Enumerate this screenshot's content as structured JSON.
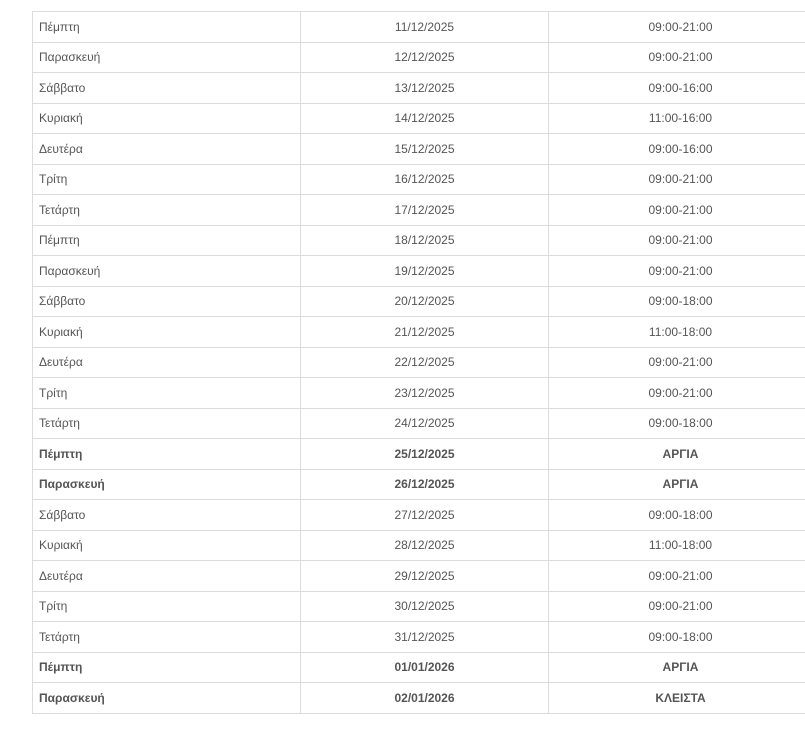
{
  "rows": [
    {
      "day": "Πέμπτη",
      "date": "11/12/2025",
      "hours": "09:00-21:00",
      "bold": false
    },
    {
      "day": "Παρασκευή",
      "date": "12/12/2025",
      "hours": "09:00-21:00",
      "bold": false
    },
    {
      "day": "Σάββατο",
      "date": "13/12/2025",
      "hours": "09:00-16:00",
      "bold": false
    },
    {
      "day": "Κυριακή",
      "date": "14/12/2025",
      "hours": "11:00-16:00",
      "bold": false
    },
    {
      "day": "Δευτέρα",
      "date": "15/12/2025",
      "hours": "09:00-16:00",
      "bold": false
    },
    {
      "day": "Τρίτη",
      "date": "16/12/2025",
      "hours": "09:00-21:00",
      "bold": false
    },
    {
      "day": "Τετάρτη",
      "date": "17/12/2025",
      "hours": "09:00-21:00",
      "bold": false
    },
    {
      "day": "Πέμπτη",
      "date": "18/12/2025",
      "hours": "09:00-21:00",
      "bold": false
    },
    {
      "day": "Παρασκευή",
      "date": "19/12/2025",
      "hours": "09:00-21:00",
      "bold": false
    },
    {
      "day": "Σάββατο",
      "date": "20/12/2025",
      "hours": "09:00-18:00",
      "bold": false
    },
    {
      "day": "Κυριακή",
      "date": "21/12/2025",
      "hours": "11:00-18:00",
      "bold": false
    },
    {
      "day": "Δευτέρα",
      "date": "22/12/2025",
      "hours": "09:00-21:00",
      "bold": false
    },
    {
      "day": "Τρίτη",
      "date": "23/12/2025",
      "hours": "09:00-21:00",
      "bold": false
    },
    {
      "day": "Τετάρτη",
      "date": "24/12/2025",
      "hours": "09:00-18:00",
      "bold": false
    },
    {
      "day": "Πέμπτη",
      "date": "25/12/2025",
      "hours": "ΑΡΓΙΑ",
      "bold": true
    },
    {
      "day": "Παρασκευή",
      "date": "26/12/2025",
      "hours": "ΑΡΓΙΑ",
      "bold": true
    },
    {
      "day": "Σάββατο",
      "date": "27/12/2025",
      "hours": "09:00-18:00",
      "bold": false
    },
    {
      "day": "Κυριακή",
      "date": "28/12/2025",
      "hours": "11:00-18:00",
      "bold": false
    },
    {
      "day": "Δευτέρα",
      "date": "29/12/2025",
      "hours": "09:00-21:00",
      "bold": false
    },
    {
      "day": "Τρίτη",
      "date": "30/12/2025",
      "hours": "09:00-21:00",
      "bold": false
    },
    {
      "day": "Τετάρτη",
      "date": "31/12/2025",
      "hours": "09:00-18:00",
      "bold": false
    },
    {
      "day": "Πέμπτη",
      "date": "01/01/2026",
      "hours": "ΑΡΓΙΑ",
      "bold": true
    },
    {
      "day": "Παρασκευή",
      "date": "02/01/2026",
      "hours": "ΚΛΕΙΣΤΑ",
      "bold": true
    }
  ]
}
